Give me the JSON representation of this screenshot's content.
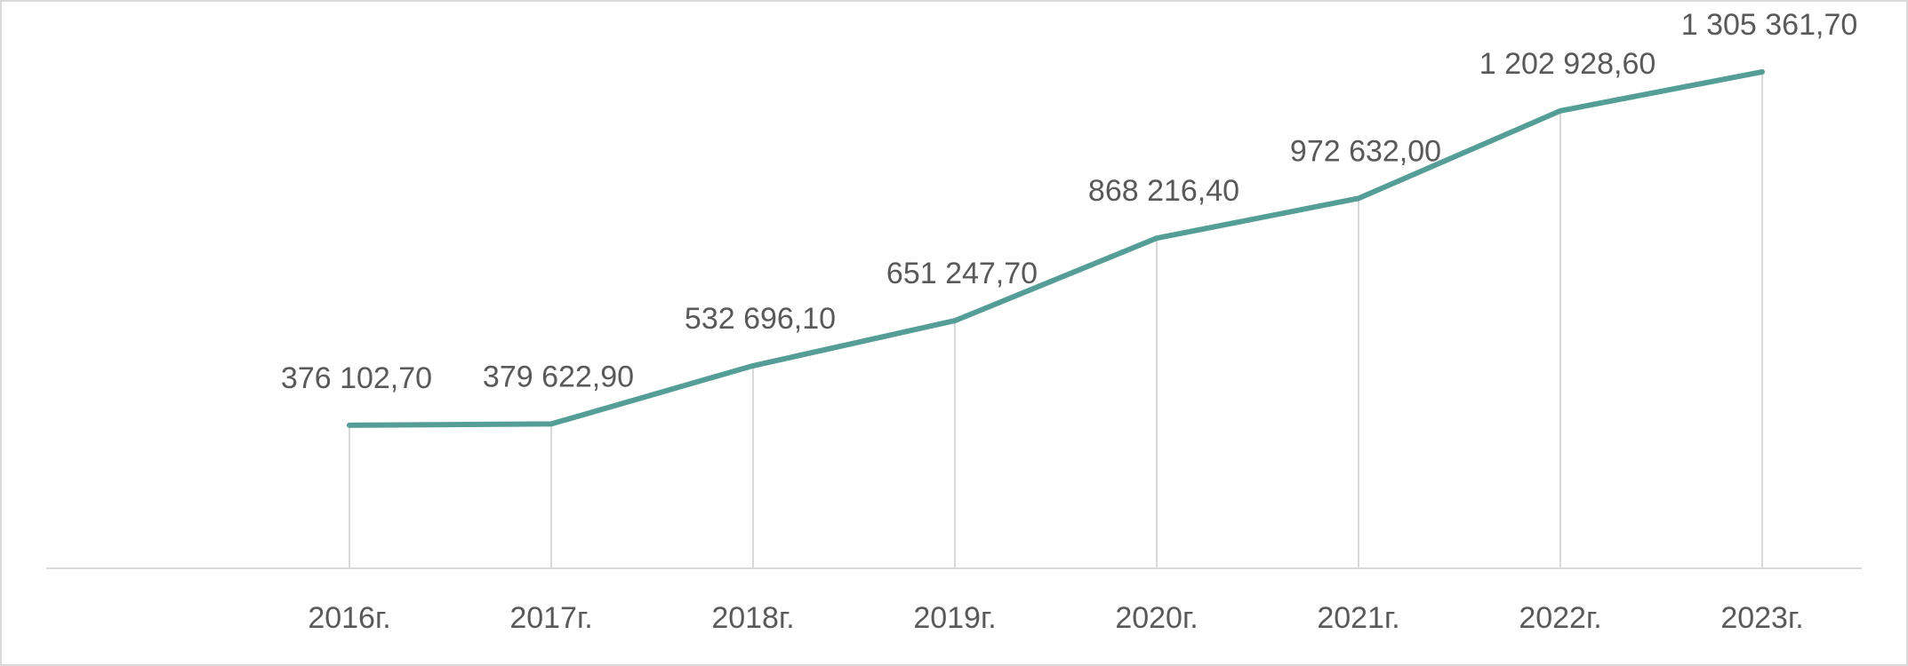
{
  "chart_data": {
    "type": "line",
    "categories": [
      "2016г.",
      "2017г.",
      "2018г.",
      "2019г.",
      "2020г.",
      "2021г.",
      "2022г.",
      "2023г."
    ],
    "series": [
      {
        "values": [
          376102.7,
          379622.9,
          532696.1,
          651247.7,
          868216.4,
          972632.0,
          1202928.6,
          1305361.7
        ],
        "data_labels": [
          "376 102,70",
          "379 622,90",
          "532 696,10",
          "651 247,70",
          "868 216,40",
          "972 632,00",
          "1 202 928,60",
          "1 305 361,70"
        ],
        "color": "#559e97"
      }
    ],
    "ylim": [
      0,
      1450000
    ],
    "grid": "vertical-drop-lines",
    "legend": "none",
    "axis_color": "#d9d9d9",
    "label_color": "#595959"
  }
}
